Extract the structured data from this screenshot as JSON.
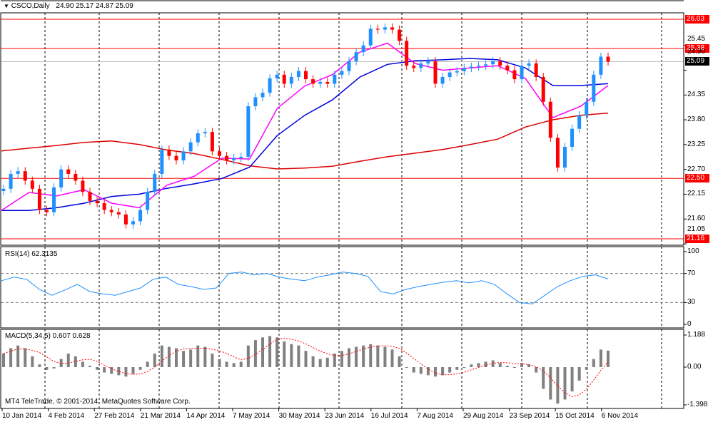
{
  "header": {
    "symbol_label": "CSCO,Daily",
    "ohlc": "24.90 25.17 24.87 25.09"
  },
  "rsi_header": "RSI(14) 62.3135",
  "macd_header": "MACD(5,34,5) 0.607 0.628",
  "copyright": "MT4 TeleTrade, © 2001-2014, MetaQuotes Software Corp.",
  "colors": {
    "bull": "#1e90ff",
    "bear": "#ff0000",
    "ma_fast": "#ff00ff",
    "ma_mid": "#0000dd",
    "ma_slow": "#dd0000",
    "rsi": "#1e90ff",
    "macd_hist": "#808080",
    "macd_signal": "#ff0000",
    "level_line": "#ff0000"
  },
  "chart_data": {
    "type": "candlestick",
    "title": "CSCO,Daily",
    "ylim": [
      21.05,
      26.2
    ],
    "price_ticks": [
      "25.45",
      "24.90",
      "24.35",
      "23.80",
      "23.25",
      "22.70",
      "22.15",
      "21.60",
      "21.05"
    ],
    "levels": [
      {
        "value": 26.03,
        "label": "26.03"
      },
      {
        "value": 25.38,
        "label": "25.38"
      },
      {
        "value": 22.5,
        "label": "22.50"
      },
      {
        "value": 21.16,
        "label": "21.16"
      }
    ],
    "last_price": {
      "value": 25.09,
      "label": "25.09"
    },
    "x_labels": [
      "10 Jan 2014",
      "4 Feb 2014",
      "27 Feb 2014",
      "21 Mar 2014",
      "14 Apr 2014",
      "7 May 2014",
      "30 May 2014",
      "23 Jun 2014",
      "16 Jul 2014",
      "7 Aug 2014",
      "29 Aug 2014",
      "23 Sep 2014",
      "15 Oct 2014",
      "6 Nov 2014"
    ],
    "closes": [
      22.27,
      22.6,
      22.66,
      22.45,
      22.27,
      21.8,
      21.75,
      22.3,
      22.7,
      22.6,
      22.45,
      22.2,
      22.0,
      21.95,
      21.8,
      21.75,
      21.7,
      21.48,
      21.55,
      21.8,
      22.2,
      22.6,
      23.14,
      23.0,
      22.9,
      23.1,
      23.3,
      23.5,
      23.53,
      23.1,
      23.0,
      22.9,
      22.95,
      22.98,
      24.1,
      24.3,
      24.4,
      24.72,
      24.8,
      24.6,
      24.75,
      24.88,
      24.7,
      24.6,
      24.64,
      24.6,
      24.8,
      24.88,
      25.1,
      25.3,
      25.45,
      25.82,
      25.8,
      25.85,
      25.8,
      25.55,
      25.0,
      24.95,
      25.05,
      25.1,
      24.6,
      24.75,
      24.85,
      24.88,
      24.95,
      24.98,
      25.0,
      25.03,
      25.1,
      25.0,
      24.9,
      24.7,
      25.0,
      25.05,
      24.75,
      24.2,
      23.4,
      22.74,
      23.2,
      23.6,
      23.9,
      24.2,
      24.8,
      25.2,
      25.09
    ],
    "ma_fast": [
      21.79,
      22.19,
      22.11,
      22.25,
      21.95,
      21.85,
      22.35,
      22.55,
      22.95,
      22.93,
      24.05,
      24.55,
      24.8,
      25.3,
      25.5,
      25.05,
      24.9,
      24.95,
      25.0,
      24.72,
      23.85,
      24.1,
      24.56
    ],
    "ma_mid": [
      21.79,
      21.79,
      21.85,
      21.95,
      22.1,
      22.15,
      22.28,
      22.38,
      22.5,
      22.75,
      23.45,
      23.9,
      24.24,
      24.75,
      25.03,
      25.11,
      25.13,
      25.16,
      25.13,
      24.95,
      24.56,
      24.56,
      24.6
    ],
    "ma_slow": [
      23.11,
      23.17,
      23.23,
      23.3,
      23.33,
      23.25,
      23.13,
      23.05,
      22.92,
      22.78,
      22.71,
      22.73,
      22.77,
      22.88,
      22.98,
      23.06,
      23.14,
      23.25,
      23.37,
      23.64,
      23.8,
      23.9,
      23.95
    ],
    "rsi": {
      "name": "RSI(14)",
      "value_label": "62.3135",
      "ticks": [
        "100",
        "70",
        "30",
        "0"
      ],
      "levels": [
        70,
        30
      ],
      "values": [
        60,
        65,
        62,
        48,
        40,
        47,
        55,
        45,
        42,
        40,
        45,
        50,
        62,
        65,
        55,
        52,
        48,
        50,
        70,
        72,
        68,
        70,
        65,
        62,
        60,
        65,
        68,
        72,
        70,
        66,
        45,
        42,
        48,
        52,
        55,
        58,
        60,
        57,
        60,
        55,
        42,
        30,
        28,
        40,
        52,
        60,
        66,
        68,
        62.31
      ]
    },
    "macd": {
      "name": "MACD(5,34,5)",
      "main": 0.607,
      "signal": 0.628,
      "ticks": [
        "1.188",
        "0.00",
        "-1.398"
      ],
      "range": [
        -1.398,
        1.188
      ],
      "values": [
        0.5,
        0.7,
        0.8,
        0.7,
        0.4,
        0.1,
        -0.1,
        -0.05,
        0.3,
        0.5,
        0.4,
        0.2,
        0.05,
        -0.1,
        -0.2,
        -0.25,
        -0.3,
        -0.35,
        -0.25,
        -0.1,
        0.2,
        0.5,
        0.8,
        0.75,
        0.7,
        0.6,
        0.65,
        0.8,
        0.75,
        0.5,
        0.3,
        0.2,
        0.15,
        0.2,
        0.8,
        1.0,
        1.1,
        1.15,
        1.1,
        0.95,
        0.85,
        0.8,
        0.6,
        0.4,
        0.3,
        0.35,
        0.5,
        0.6,
        0.7,
        0.75,
        0.8,
        0.85,
        0.8,
        0.75,
        0.65,
        0.4,
        0.0,
        -0.2,
        -0.25,
        -0.3,
        -0.35,
        -0.3,
        -0.2,
        -0.1,
        0.0,
        0.1,
        0.15,
        0.2,
        0.25,
        0.15,
        0.05,
        0.0,
        0.15,
        0.1,
        -0.2,
        -0.8,
        -1.2,
        -1.35,
        -1.2,
        -0.9,
        -0.5,
        -0.1,
        0.3,
        0.65,
        0.61
      ]
    }
  }
}
